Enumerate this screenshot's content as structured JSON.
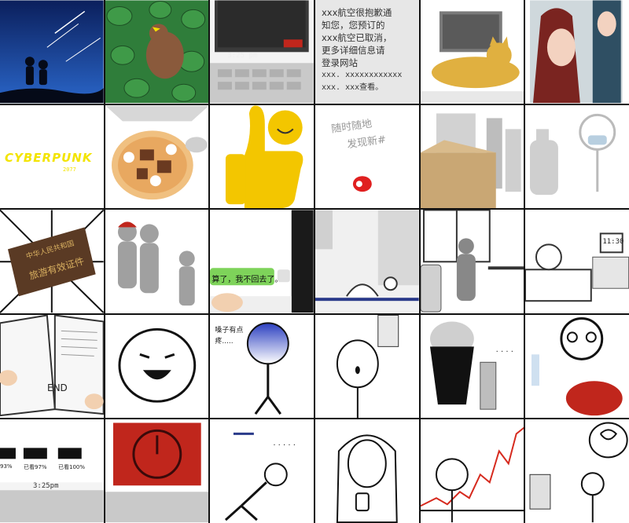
{
  "panels": {
    "laptop_time": "3:25 pm",
    "sms_lines": [
      "xxx航空很抱歉通",
      "知您，您预订的",
      "xxx航空已取消，",
      "更多详细信息请",
      "登录网站",
      "xxx. xxxxxxxxxxxx",
      "xxx. xxx查看。"
    ],
    "cyberpunk_logo": "CYBERPUNK",
    "cyberpunk_year": "2077",
    "random_draw": "随时随地",
    "random_draw2": "发现新#",
    "passport_line1": "中华人民共和国",
    "passport_line2": "旅游有效证件",
    "chat_bubble": "算了，我不回去了。",
    "alarm_time": "11:30",
    "book_end": "END",
    "throat_text": "嗓子有点",
    "throat_text2": "疼.....",
    "dots": "· · · ·",
    "dots2": "· · · · ·",
    "progress_labels": [
      "93%",
      "已看97%",
      "已看100%"
    ],
    "laptop_time2": "3:25pm"
  },
  "colors": {
    "night_sky": "#0d2a6b",
    "watermelon_green": "#2f7d3a",
    "yellow": "#f3c600",
    "red_screen": "#c0261c",
    "chart_red": "#d62a1e"
  }
}
